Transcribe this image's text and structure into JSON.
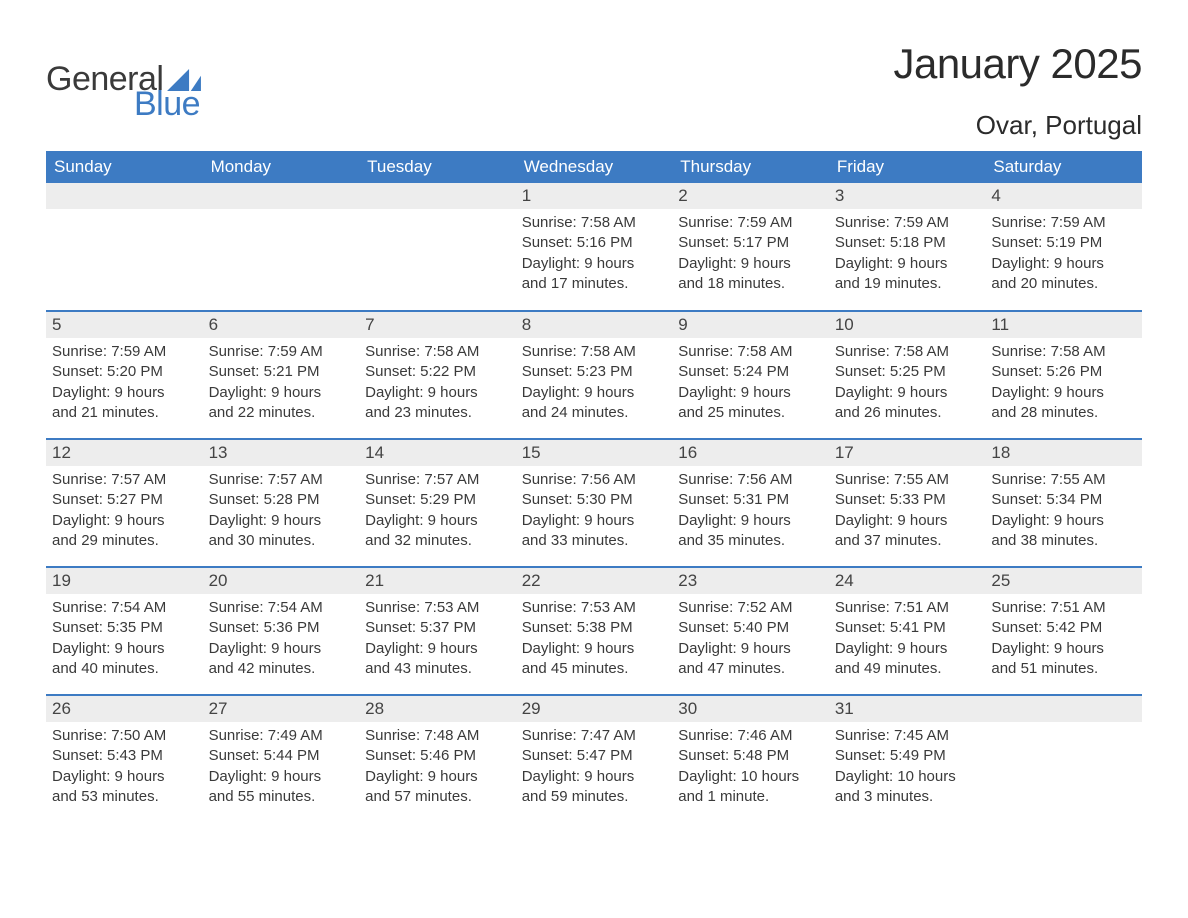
{
  "logo": {
    "text_general": "General",
    "text_blue": "Blue",
    "sail_color": "#3d7bc3",
    "general_color": "#3a3a3a",
    "blue_color": "#3d7bc3"
  },
  "header": {
    "month_title": "January 2025",
    "location": "Ovar, Portugal"
  },
  "calendar": {
    "header_bg": "#3d7bc3",
    "header_fg": "#ffffff",
    "daynum_bg": "#ededed",
    "row_divider": "#3d7bc3",
    "text_color": "#3a3a3a",
    "background_color": "#ffffff",
    "columns": [
      "Sunday",
      "Monday",
      "Tuesday",
      "Wednesday",
      "Thursday",
      "Friday",
      "Saturday"
    ],
    "weeks": [
      [
        null,
        null,
        null,
        {
          "day": "1",
          "sunrise": "Sunrise: 7:58 AM",
          "sunset": "Sunset: 5:16 PM",
          "dl1": "Daylight: 9 hours",
          "dl2": "and 17 minutes."
        },
        {
          "day": "2",
          "sunrise": "Sunrise: 7:59 AM",
          "sunset": "Sunset: 5:17 PM",
          "dl1": "Daylight: 9 hours",
          "dl2": "and 18 minutes."
        },
        {
          "day": "3",
          "sunrise": "Sunrise: 7:59 AM",
          "sunset": "Sunset: 5:18 PM",
          "dl1": "Daylight: 9 hours",
          "dl2": "and 19 minutes."
        },
        {
          "day": "4",
          "sunrise": "Sunrise: 7:59 AM",
          "sunset": "Sunset: 5:19 PM",
          "dl1": "Daylight: 9 hours",
          "dl2": "and 20 minutes."
        }
      ],
      [
        {
          "day": "5",
          "sunrise": "Sunrise: 7:59 AM",
          "sunset": "Sunset: 5:20 PM",
          "dl1": "Daylight: 9 hours",
          "dl2": "and 21 minutes."
        },
        {
          "day": "6",
          "sunrise": "Sunrise: 7:59 AM",
          "sunset": "Sunset: 5:21 PM",
          "dl1": "Daylight: 9 hours",
          "dl2": "and 22 minutes."
        },
        {
          "day": "7",
          "sunrise": "Sunrise: 7:58 AM",
          "sunset": "Sunset: 5:22 PM",
          "dl1": "Daylight: 9 hours",
          "dl2": "and 23 minutes."
        },
        {
          "day": "8",
          "sunrise": "Sunrise: 7:58 AM",
          "sunset": "Sunset: 5:23 PM",
          "dl1": "Daylight: 9 hours",
          "dl2": "and 24 minutes."
        },
        {
          "day": "9",
          "sunrise": "Sunrise: 7:58 AM",
          "sunset": "Sunset: 5:24 PM",
          "dl1": "Daylight: 9 hours",
          "dl2": "and 25 minutes."
        },
        {
          "day": "10",
          "sunrise": "Sunrise: 7:58 AM",
          "sunset": "Sunset: 5:25 PM",
          "dl1": "Daylight: 9 hours",
          "dl2": "and 26 minutes."
        },
        {
          "day": "11",
          "sunrise": "Sunrise: 7:58 AM",
          "sunset": "Sunset: 5:26 PM",
          "dl1": "Daylight: 9 hours",
          "dl2": "and 28 minutes."
        }
      ],
      [
        {
          "day": "12",
          "sunrise": "Sunrise: 7:57 AM",
          "sunset": "Sunset: 5:27 PM",
          "dl1": "Daylight: 9 hours",
          "dl2": "and 29 minutes."
        },
        {
          "day": "13",
          "sunrise": "Sunrise: 7:57 AM",
          "sunset": "Sunset: 5:28 PM",
          "dl1": "Daylight: 9 hours",
          "dl2": "and 30 minutes."
        },
        {
          "day": "14",
          "sunrise": "Sunrise: 7:57 AM",
          "sunset": "Sunset: 5:29 PM",
          "dl1": "Daylight: 9 hours",
          "dl2": "and 32 minutes."
        },
        {
          "day": "15",
          "sunrise": "Sunrise: 7:56 AM",
          "sunset": "Sunset: 5:30 PM",
          "dl1": "Daylight: 9 hours",
          "dl2": "and 33 minutes."
        },
        {
          "day": "16",
          "sunrise": "Sunrise: 7:56 AM",
          "sunset": "Sunset: 5:31 PM",
          "dl1": "Daylight: 9 hours",
          "dl2": "and 35 minutes."
        },
        {
          "day": "17",
          "sunrise": "Sunrise: 7:55 AM",
          "sunset": "Sunset: 5:33 PM",
          "dl1": "Daylight: 9 hours",
          "dl2": "and 37 minutes."
        },
        {
          "day": "18",
          "sunrise": "Sunrise: 7:55 AM",
          "sunset": "Sunset: 5:34 PM",
          "dl1": "Daylight: 9 hours",
          "dl2": "and 38 minutes."
        }
      ],
      [
        {
          "day": "19",
          "sunrise": "Sunrise: 7:54 AM",
          "sunset": "Sunset: 5:35 PM",
          "dl1": "Daylight: 9 hours",
          "dl2": "and 40 minutes."
        },
        {
          "day": "20",
          "sunrise": "Sunrise: 7:54 AM",
          "sunset": "Sunset: 5:36 PM",
          "dl1": "Daylight: 9 hours",
          "dl2": "and 42 minutes."
        },
        {
          "day": "21",
          "sunrise": "Sunrise: 7:53 AM",
          "sunset": "Sunset: 5:37 PM",
          "dl1": "Daylight: 9 hours",
          "dl2": "and 43 minutes."
        },
        {
          "day": "22",
          "sunrise": "Sunrise: 7:53 AM",
          "sunset": "Sunset: 5:38 PM",
          "dl1": "Daylight: 9 hours",
          "dl2": "and 45 minutes."
        },
        {
          "day": "23",
          "sunrise": "Sunrise: 7:52 AM",
          "sunset": "Sunset: 5:40 PM",
          "dl1": "Daylight: 9 hours",
          "dl2": "and 47 minutes."
        },
        {
          "day": "24",
          "sunrise": "Sunrise: 7:51 AM",
          "sunset": "Sunset: 5:41 PM",
          "dl1": "Daylight: 9 hours",
          "dl2": "and 49 minutes."
        },
        {
          "day": "25",
          "sunrise": "Sunrise: 7:51 AM",
          "sunset": "Sunset: 5:42 PM",
          "dl1": "Daylight: 9 hours",
          "dl2": "and 51 minutes."
        }
      ],
      [
        {
          "day": "26",
          "sunrise": "Sunrise: 7:50 AM",
          "sunset": "Sunset: 5:43 PM",
          "dl1": "Daylight: 9 hours",
          "dl2": "and 53 minutes."
        },
        {
          "day": "27",
          "sunrise": "Sunrise: 7:49 AM",
          "sunset": "Sunset: 5:44 PM",
          "dl1": "Daylight: 9 hours",
          "dl2": "and 55 minutes."
        },
        {
          "day": "28",
          "sunrise": "Sunrise: 7:48 AM",
          "sunset": "Sunset: 5:46 PM",
          "dl1": "Daylight: 9 hours",
          "dl2": "and 57 minutes."
        },
        {
          "day": "29",
          "sunrise": "Sunrise: 7:47 AM",
          "sunset": "Sunset: 5:47 PM",
          "dl1": "Daylight: 9 hours",
          "dl2": "and 59 minutes."
        },
        {
          "day": "30",
          "sunrise": "Sunrise: 7:46 AM",
          "sunset": "Sunset: 5:48 PM",
          "dl1": "Daylight: 10 hours",
          "dl2": "and 1 minute."
        },
        {
          "day": "31",
          "sunrise": "Sunrise: 7:45 AM",
          "sunset": "Sunset: 5:49 PM",
          "dl1": "Daylight: 10 hours",
          "dl2": "and 3 minutes."
        },
        null
      ]
    ]
  }
}
